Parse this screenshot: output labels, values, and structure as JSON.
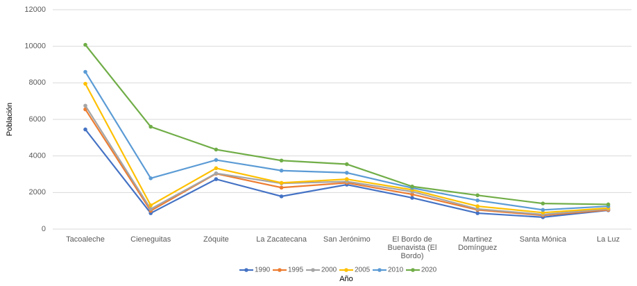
{
  "chart_data": {
    "type": "line",
    "y_label": "Población",
    "x_label": "Año",
    "categories": [
      "Tacoaleche",
      "Cieneguitas",
      "Zóquite",
      "La Zacatecana",
      "San Jerónimo",
      "El Bordo de Buenavista (El Bordo)",
      "Martinez Domínguez",
      "Santa Mónica",
      "La Luz"
    ],
    "series": [
      {
        "name": "1990",
        "color": "#4472c4",
        "values": [
          5450,
          870,
          2730,
          1790,
          2430,
          1710,
          870,
          650,
          1030
        ]
      },
      {
        "name": "1995",
        "color": "#ed7d31",
        "values": [
          6550,
          1000,
          3030,
          2270,
          2530,
          1900,
          1050,
          750,
          1050
        ]
      },
      {
        "name": "2000",
        "color": "#a5a5a5",
        "values": [
          6750,
          1100,
          3050,
          2500,
          2600,
          2050,
          1100,
          800,
          1100
        ]
      },
      {
        "name": "2005",
        "color": "#ffc000",
        "values": [
          7950,
          1300,
          3330,
          2530,
          2730,
          2150,
          1250,
          900,
          1150
        ]
      },
      {
        "name": "2010",
        "color": "#5b9bd5",
        "values": [
          8600,
          2780,
          3780,
          3200,
          3080,
          2250,
          1570,
          1050,
          1250
        ]
      },
      {
        "name": "2020",
        "color": "#70ad47",
        "values": [
          10080,
          5600,
          4350,
          3750,
          3550,
          2330,
          1850,
          1400,
          1350
        ]
      }
    ],
    "ylim": [
      0,
      12000
    ],
    "yticks": [
      0,
      2000,
      4000,
      6000,
      8000,
      10000,
      12000
    ],
    "grid": true,
    "legend": "bottom"
  }
}
